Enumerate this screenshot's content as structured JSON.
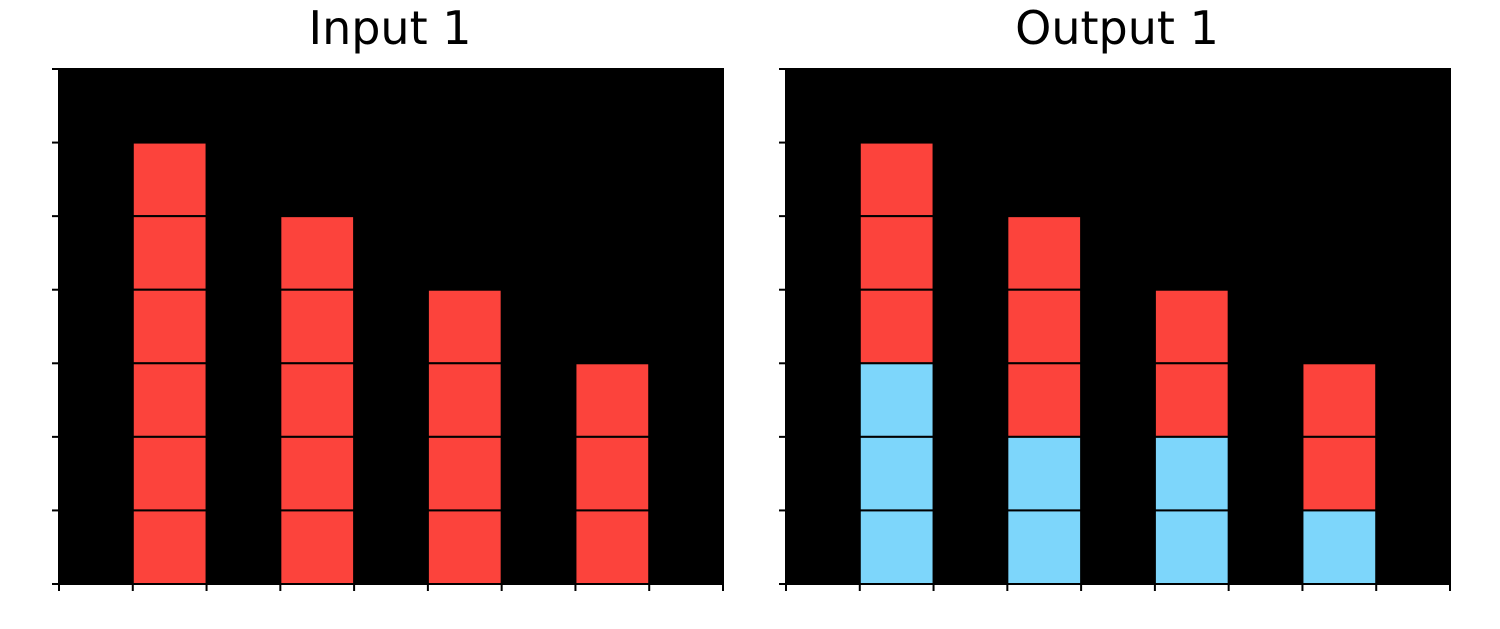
{
  "palette": {
    "0": "#000000",
    "2": "#fc433c",
    "8": "#7dd6fb"
  },
  "grid_line_color": "#000000",
  "panels": [
    {
      "title": "Input 1",
      "rows": 7,
      "cols": 9,
      "grid": [
        [
          0,
          0,
          0,
          0,
          0,
          0,
          0,
          0,
          0
        ],
        [
          0,
          2,
          0,
          0,
          0,
          0,
          0,
          0,
          0
        ],
        [
          0,
          2,
          0,
          2,
          0,
          0,
          0,
          0,
          0
        ],
        [
          0,
          2,
          0,
          2,
          0,
          2,
          0,
          0,
          0
        ],
        [
          0,
          2,
          0,
          2,
          0,
          2,
          0,
          2,
          0
        ],
        [
          0,
          2,
          0,
          2,
          0,
          2,
          0,
          2,
          0
        ],
        [
          0,
          2,
          0,
          2,
          0,
          2,
          0,
          2,
          0
        ]
      ]
    },
    {
      "title": "Output 1",
      "rows": 7,
      "cols": 9,
      "grid": [
        [
          0,
          0,
          0,
          0,
          0,
          0,
          0,
          0,
          0
        ],
        [
          0,
          2,
          0,
          0,
          0,
          0,
          0,
          0,
          0
        ],
        [
          0,
          2,
          0,
          2,
          0,
          0,
          0,
          0,
          0
        ],
        [
          0,
          2,
          0,
          2,
          0,
          2,
          0,
          0,
          0
        ],
        [
          0,
          8,
          0,
          2,
          0,
          2,
          0,
          2,
          0
        ],
        [
          0,
          8,
          0,
          8,
          0,
          8,
          0,
          2,
          0
        ],
        [
          0,
          8,
          0,
          8,
          0,
          8,
          0,
          8,
          0
        ]
      ]
    }
  ]
}
